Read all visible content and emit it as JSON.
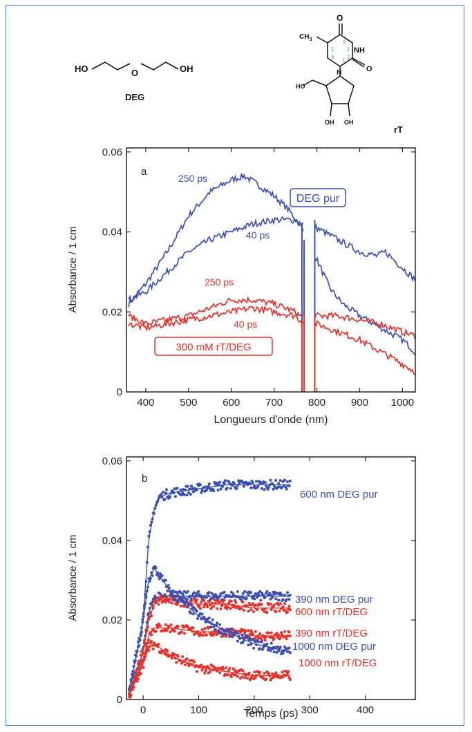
{
  "molecules": {
    "deg": {
      "ho_left": "HO",
      "o_mid": "O",
      "oh_right": "OH",
      "name": "DEG"
    },
    "rt": {
      "o_top": "O",
      "ch3": "CH",
      "ch3_sub": "3",
      "nh": "NH",
      "n": "N",
      "o_carbonyl": "O",
      "ho": "HO",
      "oh_left": "OH",
      "oh_right": "OH",
      "name": "rT",
      "ring_numbers": [
        "4",
        "5",
        "3",
        "6",
        "1",
        "2"
      ]
    }
  },
  "colors": {
    "deg": "#3b4fb0",
    "rt": "#e8302a",
    "frame": "#3f7fc3",
    "ring_numbers": "#5aa0e0"
  },
  "chart_data": [
    {
      "type": "line",
      "panel_label": "a",
      "xlabel": "Longueurs d'onde (nm)",
      "ylabel": "Absorbance / 1 cm",
      "xlim": [
        355,
        1030
      ],
      "ylim": [
        0,
        0.061
      ],
      "xticks": [
        400,
        500,
        600,
        700,
        800,
        900,
        1000
      ],
      "yticks": [
        0,
        0.02,
        0.04,
        0.06
      ],
      "ytick_labels": [
        "0",
        "0.02",
        "0.04",
        "0.06"
      ],
      "annotations": {
        "deg_box": "DEG pur",
        "rt_box": "300 mM rT/DEG",
        "deg_250": "250 ps",
        "deg_40": "40 ps",
        "rt_250": "250 ps",
        "rt_40": "40 ps"
      },
      "series": [
        {
          "legend": "DEG pur 250 ps",
          "color": "deg",
          "x": [
            360,
            400,
            450,
            500,
            550,
            600,
            630,
            660,
            700,
            730,
            760,
            800,
            830,
            860,
            900,
            950,
            1000,
            1030
          ],
          "y": [
            0.022,
            0.027,
            0.035,
            0.044,
            0.05,
            0.053,
            0.054,
            0.052,
            0.049,
            0.046,
            0.042,
            0.033,
            0.026,
            0.022,
            0.019,
            0.016,
            0.013,
            0.01
          ]
        },
        {
          "legend": "DEG pur 40 ps",
          "color": "deg",
          "x": [
            360,
            400,
            450,
            500,
            550,
            600,
            650,
            700,
            750,
            760,
            800,
            850,
            900,
            940,
            960,
            1000,
            1030
          ],
          "y": [
            0.023,
            0.025,
            0.03,
            0.035,
            0.038,
            0.04,
            0.042,
            0.043,
            0.043,
            0.042,
            0.041,
            0.038,
            0.035,
            0.034,
            0.035,
            0.031,
            0.028
          ]
        },
        {
          "legend": "300 mM rT/DEG 250 ps",
          "color": "rt",
          "x": [
            360,
            400,
            450,
            500,
            550,
            600,
            650,
            700,
            750,
            760,
            800,
            850,
            900,
            950,
            1000,
            1030
          ],
          "y": [
            0.019,
            0.017,
            0.018,
            0.019,
            0.021,
            0.023,
            0.023,
            0.022,
            0.02,
            0.019,
            0.019,
            0.019,
            0.018,
            0.017,
            0.015,
            0.014
          ]
        },
        {
          "legend": "300 mM rT/DEG 40 ps",
          "color": "rt",
          "x": [
            360,
            400,
            450,
            500,
            550,
            600,
            650,
            700,
            750,
            760,
            800,
            850,
            900,
            950,
            1000,
            1030
          ],
          "y": [
            0.017,
            0.016,
            0.017,
            0.018,
            0.019,
            0.02,
            0.021,
            0.02,
            0.019,
            0.018,
            0.017,
            0.015,
            0.013,
            0.01,
            0.007,
            0.005
          ]
        }
      ]
    },
    {
      "type": "scatter",
      "panel_label": "b",
      "xlabel": "Temps (ps)",
      "ylabel": "Absorbance / 1 cm",
      "xlim": [
        -30,
        490
      ],
      "ylim": [
        0,
        0.061
      ],
      "xticks": [
        0,
        100,
        200,
        300,
        400
      ],
      "yticks": [
        0,
        0.02,
        0.04,
        0.06
      ],
      "ytick_labels": [
        "0",
        "0.02",
        "0.04",
        "0.06"
      ],
      "series": [
        {
          "legend": "600 nm DEG pur",
          "color": "deg",
          "x": [
            -25,
            0,
            10,
            20,
            30,
            50,
            100,
            150,
            200,
            265
          ],
          "y": [
            0.002,
            0.02,
            0.04,
            0.048,
            0.051,
            0.052,
            0.053,
            0.054,
            0.054,
            0.054
          ]
        },
        {
          "legend": "390 nm DEG pur",
          "color": "deg",
          "x": [
            -25,
            0,
            10,
            20,
            30,
            50,
            100,
            150,
            200,
            265
          ],
          "y": [
            0.002,
            0.012,
            0.022,
            0.025,
            0.026,
            0.026,
            0.026,
            0.026,
            0.026,
            0.026
          ]
        },
        {
          "legend": "600 nm rT/DEG",
          "color": "rt",
          "x": [
            -25,
            0,
            10,
            20,
            30,
            50,
            100,
            150,
            200,
            265
          ],
          "y": [
            0.001,
            0.012,
            0.02,
            0.024,
            0.025,
            0.025,
            0.024,
            0.024,
            0.023,
            0.023
          ]
        },
        {
          "legend": "390 nm rT/DEG",
          "color": "rt",
          "x": [
            -25,
            0,
            10,
            20,
            30,
            50,
            100,
            150,
            200,
            265
          ],
          "y": [
            0.001,
            0.01,
            0.016,
            0.018,
            0.018,
            0.018,
            0.017,
            0.017,
            0.016,
            0.016
          ]
        },
        {
          "legend": "1000 nm DEG pur",
          "color": "deg",
          "x": [
            -25,
            0,
            10,
            20,
            30,
            50,
            100,
            150,
            200,
            265
          ],
          "y": [
            0.002,
            0.02,
            0.03,
            0.033,
            0.031,
            0.027,
            0.021,
            0.017,
            0.014,
            0.012
          ]
        },
        {
          "legend": "1000 nm rT/DEG",
          "color": "rt",
          "x": [
            -25,
            0,
            10,
            20,
            30,
            50,
            100,
            150,
            200,
            265
          ],
          "y": [
            0.001,
            0.009,
            0.013,
            0.014,
            0.013,
            0.011,
            0.008,
            0.007,
            0.006,
            0.006
          ]
        }
      ]
    }
  ]
}
